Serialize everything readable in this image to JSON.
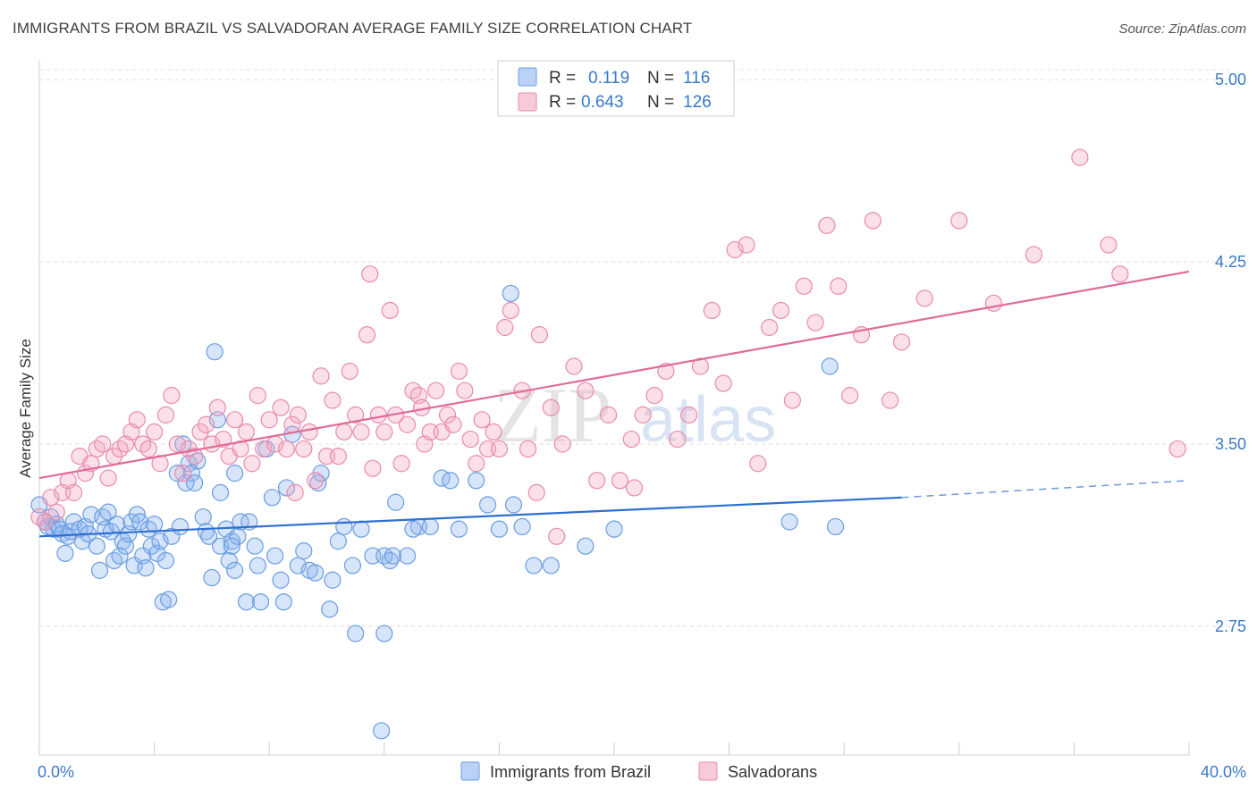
{
  "title": "IMMIGRANTS FROM BRAZIL VS SALVADORAN AVERAGE FAMILY SIZE CORRELATION CHART",
  "source": "Source: ZipAtlas.com",
  "watermark": {
    "zip": "ZIP",
    "atlas": "atlas"
  },
  "chart_data": {
    "type": "scatter",
    "title": "IMMIGRANTS FROM BRAZIL VS SALVADORAN AVERAGE FAMILY SIZE CORRELATION CHART",
    "xlabel": "",
    "ylabel": "Average Family Size",
    "xlim": [
      0,
      40
    ],
    "ylim": [
      2.22,
      5.1
    ],
    "x_tick_labels": [
      "0.0%",
      "40.0%"
    ],
    "y_ticks": [
      2.75,
      3.5,
      4.25,
      5.0
    ],
    "y_tick_labels": [
      "2.75",
      "3.50",
      "4.25",
      "5.00"
    ],
    "grid": "horizontal dashed",
    "legend_top": [
      {
        "r_label": "R =",
        "r_value": "0.119",
        "n_label": "N =",
        "n_value": "116",
        "color": "#8ab4f0"
      },
      {
        "r_label": "R =",
        "r_value": "0.643",
        "n_label": "N =",
        "n_value": "126",
        "color": "#f4a7c0"
      }
    ],
    "series": [
      {
        "name": "Immigrants from Brazil",
        "color": "#8ab4f0",
        "stroke": "#6a9ce0",
        "trend": {
          "x": [
            0,
            30
          ],
          "y": [
            3.12,
            3.28
          ],
          "color": "#2f6fd1",
          "dashed_to": [
            40,
            3.35
          ]
        },
        "points": [
          [
            0,
            3.25
          ],
          [
            0.2,
            3.18
          ],
          [
            0.3,
            3.16
          ],
          [
            0.4,
            3.2
          ],
          [
            0.5,
            3.15
          ],
          [
            0.6,
            3.17
          ],
          [
            0.7,
            3.15
          ],
          [
            0.8,
            3.13
          ],
          [
            0.9,
            3.05
          ],
          [
            1.0,
            3.12
          ],
          [
            1.1,
            3.14
          ],
          [
            1.2,
            3.18
          ],
          [
            1.4,
            3.15
          ],
          [
            1.5,
            3.1
          ],
          [
            1.6,
            3.16
          ],
          [
            1.7,
            3.13
          ],
          [
            1.8,
            3.21
          ],
          [
            2.0,
            3.08
          ],
          [
            2.1,
            2.98
          ],
          [
            2.2,
            3.2
          ],
          [
            2.3,
            3.15
          ],
          [
            2.4,
            3.22
          ],
          [
            2.5,
            3.14
          ],
          [
            2.6,
            3.02
          ],
          [
            2.7,
            3.17
          ],
          [
            2.8,
            3.04
          ],
          [
            2.9,
            3.1
          ],
          [
            3.0,
            3.08
          ],
          [
            3.1,
            3.13
          ],
          [
            3.2,
            3.18
          ],
          [
            3.3,
            3.0
          ],
          [
            3.4,
            3.21
          ],
          [
            3.5,
            3.18
          ],
          [
            3.6,
            3.04
          ],
          [
            3.7,
            2.99
          ],
          [
            3.8,
            3.15
          ],
          [
            3.9,
            3.08
          ],
          [
            4.0,
            3.17
          ],
          [
            4.1,
            3.05
          ],
          [
            4.2,
            3.1
          ],
          [
            4.3,
            2.85
          ],
          [
            4.4,
            3.02
          ],
          [
            4.5,
            2.86
          ],
          [
            4.6,
            3.12
          ],
          [
            4.8,
            3.38
          ],
          [
            4.9,
            3.16
          ],
          [
            5.0,
            3.5
          ],
          [
            5.1,
            3.34
          ],
          [
            5.2,
            3.42
          ],
          [
            5.3,
            3.38
          ],
          [
            5.4,
            3.34
          ],
          [
            5.5,
            3.43
          ],
          [
            5.7,
            3.2
          ],
          [
            5.8,
            3.14
          ],
          [
            5.9,
            3.12
          ],
          [
            6.0,
            2.95
          ],
          [
            6.1,
            3.88
          ],
          [
            6.2,
            3.6
          ],
          [
            6.3,
            3.08
          ],
          [
            6.5,
            3.15
          ],
          [
            6.6,
            3.02
          ],
          [
            6.7,
            3.1
          ],
          [
            6.8,
            2.98
          ],
          [
            6.9,
            3.12
          ],
          [
            7.0,
            3.18
          ],
          [
            7.2,
            2.85
          ],
          [
            7.3,
            3.18
          ],
          [
            7.5,
            3.08
          ],
          [
            7.6,
            3.0
          ],
          [
            7.7,
            2.85
          ],
          [
            7.9,
            3.48
          ],
          [
            8.1,
            3.28
          ],
          [
            8.2,
            3.04
          ],
          [
            8.4,
            2.94
          ],
          [
            8.5,
            2.85
          ],
          [
            8.6,
            3.32
          ],
          [
            8.8,
            3.54
          ],
          [
            9.0,
            3.0
          ],
          [
            9.2,
            3.06
          ],
          [
            9.4,
            2.98
          ],
          [
            9.6,
            2.97
          ],
          [
            9.7,
            3.34
          ],
          [
            9.8,
            3.38
          ],
          [
            10.1,
            2.82
          ],
          [
            10.2,
            2.94
          ],
          [
            10.4,
            3.1
          ],
          [
            10.6,
            3.16
          ],
          [
            10.9,
            3.0
          ],
          [
            11.2,
            3.15
          ],
          [
            11.6,
            3.04
          ],
          [
            12.0,
            3.04
          ],
          [
            12.4,
            3.26
          ],
          [
            12.8,
            3.04
          ],
          [
            13.2,
            3.16
          ],
          [
            13.6,
            3.16
          ],
          [
            14.0,
            3.36
          ],
          [
            14.3,
            3.35
          ],
          [
            14.6,
            3.15
          ],
          [
            15.2,
            3.35
          ],
          [
            15.6,
            3.25
          ],
          [
            16.0,
            3.15
          ],
          [
            16.4,
            4.12
          ],
          [
            16.8,
            3.16
          ],
          [
            17.2,
            3.0
          ],
          [
            17.8,
            3.0
          ],
          [
            19.0,
            3.08
          ],
          [
            20.0,
            3.15
          ],
          [
            11.0,
            2.72
          ],
          [
            12.0,
            2.72
          ],
          [
            12.2,
            3.02
          ],
          [
            12.3,
            3.04
          ],
          [
            13.0,
            3.15
          ],
          [
            11.9,
            2.32
          ],
          [
            26.1,
            3.18
          ],
          [
            27.5,
            3.82
          ],
          [
            27.7,
            3.16
          ],
          [
            16.5,
            3.25
          ],
          [
            6.7,
            3.08
          ],
          [
            6.3,
            3.3
          ],
          [
            6.8,
            3.38
          ]
        ]
      },
      {
        "name": "Salvadorans",
        "color": "#f4a7c0",
        "stroke": "#e98aac",
        "trend": {
          "x": [
            0,
            40
          ],
          "y": [
            3.36,
            4.21
          ],
          "color": "#e06b97"
        },
        "points": [
          [
            0,
            3.2
          ],
          [
            0.2,
            3.18
          ],
          [
            0.4,
            3.28
          ],
          [
            0.6,
            3.22
          ],
          [
            0.8,
            3.3
          ],
          [
            1.0,
            3.35
          ],
          [
            1.2,
            3.3
          ],
          [
            1.4,
            3.45
          ],
          [
            1.6,
            3.38
          ],
          [
            1.8,
            3.42
          ],
          [
            2.0,
            3.48
          ],
          [
            2.2,
            3.5
          ],
          [
            2.4,
            3.36
          ],
          [
            2.6,
            3.45
          ],
          [
            2.8,
            3.48
          ],
          [
            3.0,
            3.5
          ],
          [
            3.2,
            3.55
          ],
          [
            3.4,
            3.6
          ],
          [
            3.6,
            3.5
          ],
          [
            3.8,
            3.48
          ],
          [
            4.0,
            3.55
          ],
          [
            4.2,
            3.42
          ],
          [
            4.4,
            3.62
          ],
          [
            4.6,
            3.7
          ],
          [
            4.8,
            3.5
          ],
          [
            5.0,
            3.38
          ],
          [
            5.2,
            3.48
          ],
          [
            5.4,
            3.45
          ],
          [
            5.6,
            3.55
          ],
          [
            5.8,
            3.58
          ],
          [
            6.0,
            3.5
          ],
          [
            6.2,
            3.65
          ],
          [
            6.4,
            3.52
          ],
          [
            6.6,
            3.45
          ],
          [
            6.8,
            3.6
          ],
          [
            7.0,
            3.48
          ],
          [
            7.2,
            3.55
          ],
          [
            7.4,
            3.42
          ],
          [
            7.6,
            3.7
          ],
          [
            7.8,
            3.48
          ],
          [
            8.0,
            3.6
          ],
          [
            8.2,
            3.5
          ],
          [
            8.4,
            3.65
          ],
          [
            8.6,
            3.48
          ],
          [
            8.8,
            3.58
          ],
          [
            9.0,
            3.62
          ],
          [
            9.2,
            3.48
          ],
          [
            9.4,
            3.55
          ],
          [
            9.6,
            3.35
          ],
          [
            9.8,
            3.78
          ],
          [
            10.0,
            3.45
          ],
          [
            10.2,
            3.68
          ],
          [
            10.4,
            3.45
          ],
          [
            10.6,
            3.55
          ],
          [
            10.8,
            3.8
          ],
          [
            11.0,
            3.62
          ],
          [
            11.2,
            3.55
          ],
          [
            11.4,
            3.95
          ],
          [
            11.6,
            3.4
          ],
          [
            11.8,
            3.62
          ],
          [
            12.0,
            3.55
          ],
          [
            12.2,
            4.05
          ],
          [
            12.4,
            3.62
          ],
          [
            12.6,
            3.42
          ],
          [
            12.8,
            3.58
          ],
          [
            13.0,
            3.72
          ],
          [
            13.2,
            3.7
          ],
          [
            13.4,
            3.5
          ],
          [
            13.6,
            3.55
          ],
          [
            13.8,
            3.72
          ],
          [
            14.0,
            3.55
          ],
          [
            14.2,
            3.62
          ],
          [
            14.4,
            3.58
          ],
          [
            14.6,
            3.8
          ],
          [
            14.8,
            3.72
          ],
          [
            15.0,
            3.52
          ],
          [
            15.2,
            3.42
          ],
          [
            15.4,
            3.6
          ],
          [
            15.6,
            3.48
          ],
          [
            15.8,
            3.55
          ],
          [
            16.0,
            3.48
          ],
          [
            16.2,
            3.98
          ],
          [
            16.4,
            4.05
          ],
          [
            16.8,
            3.72
          ],
          [
            17.0,
            3.48
          ],
          [
            17.4,
            3.95
          ],
          [
            17.8,
            3.65
          ],
          [
            18.2,
            3.5
          ],
          [
            18.6,
            3.82
          ],
          [
            19.0,
            3.72
          ],
          [
            19.4,
            3.35
          ],
          [
            19.8,
            3.62
          ],
          [
            20.2,
            3.35
          ],
          [
            20.6,
            3.52
          ],
          [
            21.0,
            3.62
          ],
          [
            21.4,
            3.7
          ],
          [
            21.8,
            3.8
          ],
          [
            22.2,
            3.52
          ],
          [
            22.6,
            3.62
          ],
          [
            23.0,
            3.82
          ],
          [
            23.4,
            4.05
          ],
          [
            23.8,
            3.75
          ],
          [
            24.2,
            4.3
          ],
          [
            24.6,
            4.32
          ],
          [
            25.0,
            3.42
          ],
          [
            25.4,
            3.98
          ],
          [
            25.8,
            4.05
          ],
          [
            26.2,
            3.68
          ],
          [
            26.6,
            4.15
          ],
          [
            27.0,
            4.0
          ],
          [
            27.4,
            4.4
          ],
          [
            27.8,
            4.15
          ],
          [
            28.2,
            3.7
          ],
          [
            28.6,
            3.95
          ],
          [
            29.0,
            4.42
          ],
          [
            29.6,
            3.68
          ],
          [
            30.0,
            3.92
          ],
          [
            30.8,
            4.1
          ],
          [
            32.0,
            4.42
          ],
          [
            33.2,
            4.08
          ],
          [
            34.6,
            4.28
          ],
          [
            36.2,
            4.68
          ],
          [
            37.2,
            4.32
          ],
          [
            37.6,
            4.2
          ],
          [
            39.6,
            3.48
          ],
          [
            11.5,
            4.2
          ],
          [
            13.3,
            3.65
          ],
          [
            8.9,
            3.3
          ],
          [
            17.3,
            3.3
          ],
          [
            18.0,
            3.12
          ],
          [
            20.7,
            3.32
          ]
        ]
      }
    ]
  }
}
